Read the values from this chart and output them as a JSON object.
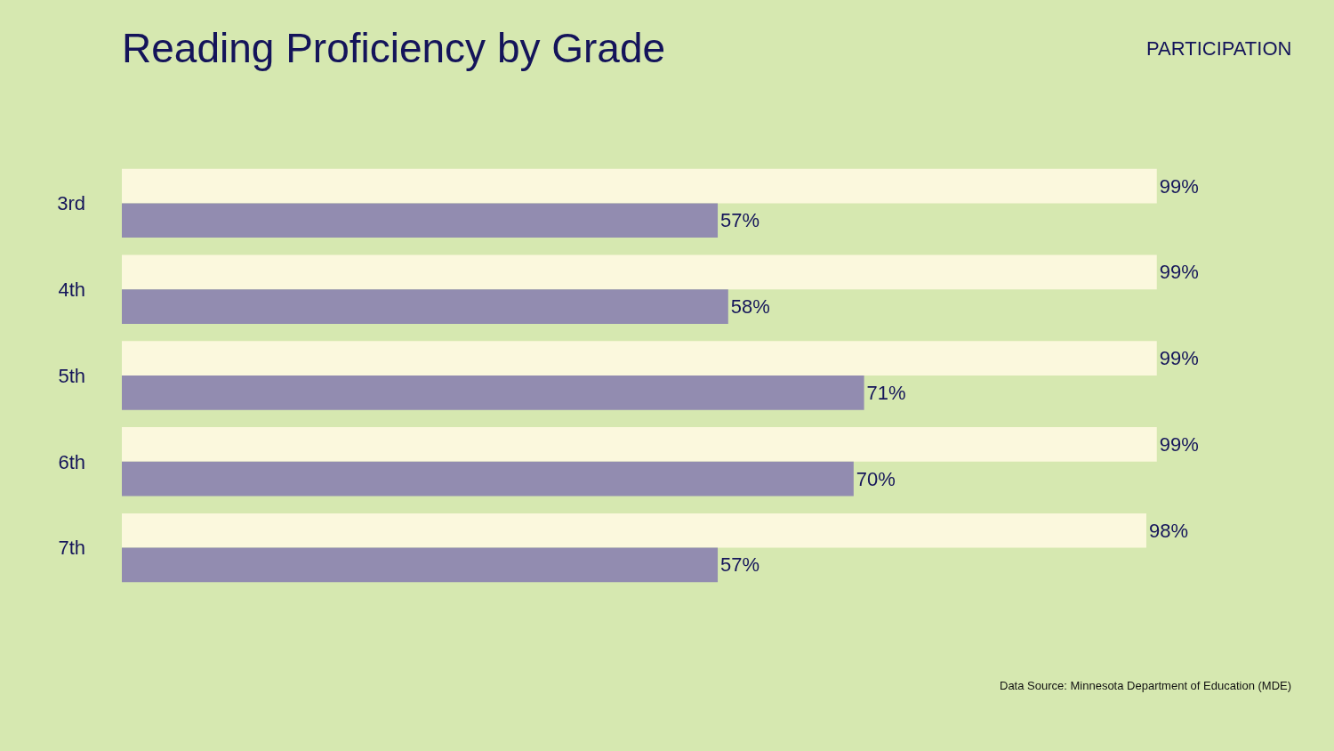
{
  "chart_data": {
    "type": "bar",
    "orientation": "horizontal",
    "title": "Reading Proficiency by Grade",
    "categories": [
      "3rd",
      "4th",
      "5th",
      "6th",
      "7th"
    ],
    "series": [
      {
        "name": "PARTICIPATION",
        "color": "#fbf8dd",
        "values": [
          99,
          99,
          99,
          99,
          98
        ],
        "value_labels": [
          "99%",
          "99%",
          "99%",
          "99%",
          "98%"
        ]
      },
      {
        "color": "#928cb0",
        "values": [
          57,
          58,
          71,
          70,
          57
        ],
        "value_labels": [
          "57%",
          "58%",
          "71%",
          "70%",
          "57%"
        ]
      }
    ],
    "legend": false,
    "annotations": [
      "Data Source: Minnesota Department of Education (MDE)"
    ]
  }
}
